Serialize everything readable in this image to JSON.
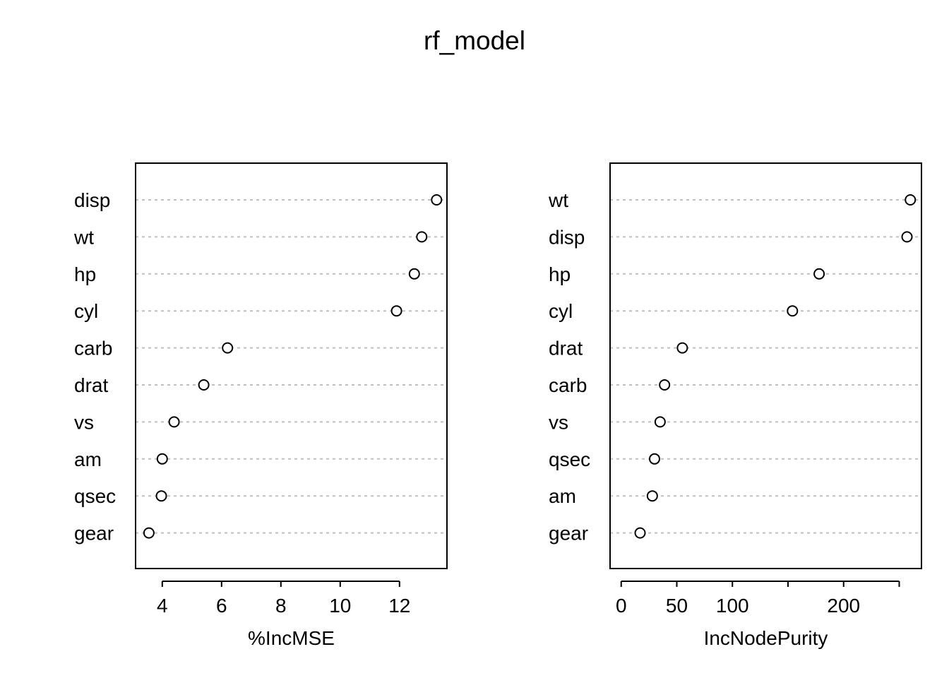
{
  "title": "rf_model",
  "chart_data": [
    {
      "type": "scatter",
      "xlabel": "%IncMSE",
      "ylabel": "",
      "xlim": [
        3.1,
        13.6
      ],
      "xticks": [
        4,
        6,
        8,
        10,
        12
      ],
      "xtick_labels": [
        "4",
        "6",
        "8",
        "10",
        "12"
      ],
      "grid": "horizontal dotted guides",
      "categories": [
        "disp",
        "wt",
        "hp",
        "cyl",
        "carb",
        "drat",
        "vs",
        "am",
        "qsec",
        "gear"
      ],
      "values": [
        13.25,
        12.75,
        12.5,
        11.9,
        6.2,
        5.4,
        4.4,
        4.0,
        3.97,
        3.55
      ]
    },
    {
      "type": "scatter",
      "xlabel": "IncNodePurity",
      "ylabel": "",
      "xlim": [
        -10,
        270
      ],
      "xticks": [
        0,
        50,
        100,
        150,
        200,
        250
      ],
      "xtick_labels": [
        "0",
        "50",
        "100",
        "",
        "200",
        ""
      ],
      "grid": "horizontal dotted guides",
      "categories": [
        "wt",
        "disp",
        "hp",
        "cyl",
        "drat",
        "carb",
        "vs",
        "qsec",
        "am",
        "gear"
      ],
      "values": [
        260,
        257,
        178,
        154,
        55,
        39,
        35,
        30,
        28,
        17
      ]
    }
  ]
}
